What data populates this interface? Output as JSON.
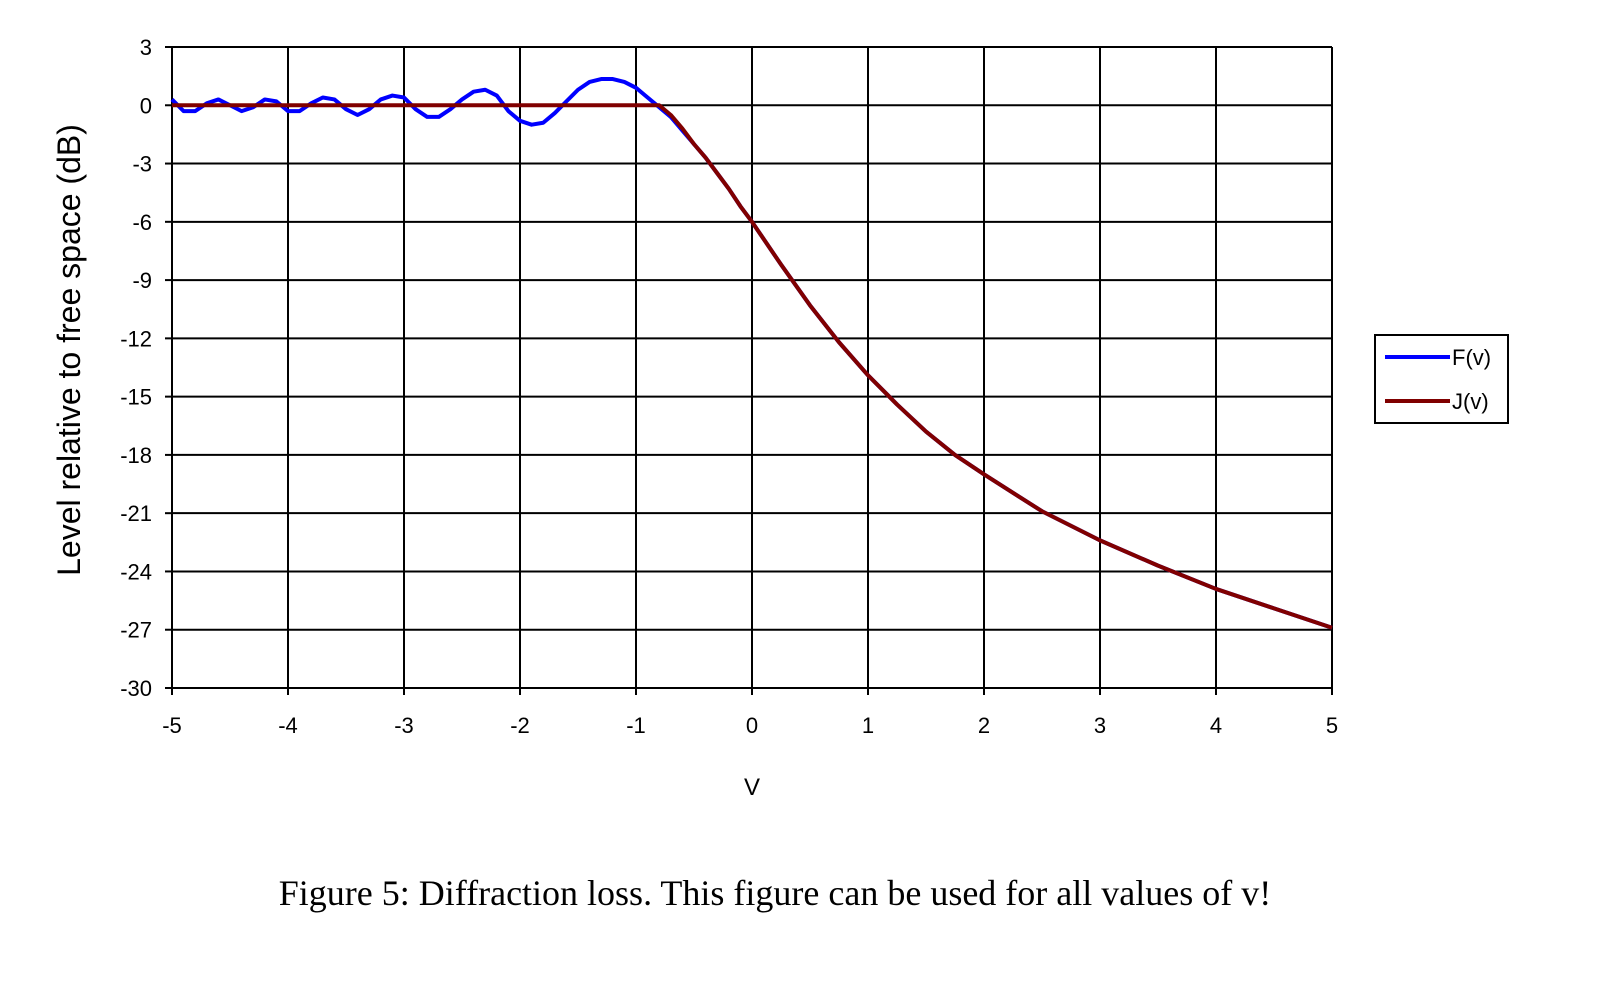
{
  "chart_data": {
    "type": "line",
    "x_label": "V",
    "y_label": "Level relative to free space (dB)",
    "caption": "Figure 5: Diffraction loss. This figure can be used for all values of v!",
    "x": [
      -5,
      -4.9,
      -4.8,
      -4.7,
      -4.6,
      -4.5,
      -4.4,
      -4.3,
      -4.2,
      -4.1,
      -4,
      -3.9,
      -3.8,
      -3.7,
      -3.6,
      -3.5,
      -3.4,
      -3.3,
      -3.2,
      -3.1,
      -3,
      -2.9,
      -2.8,
      -2.7,
      -2.6,
      -2.5,
      -2.4,
      -2.3,
      -2.2,
      -2.1,
      -2,
      -1.9,
      -1.8,
      -1.7,
      -1.6,
      -1.5,
      -1.4,
      -1.3,
      -1.2,
      -1.1,
      -1,
      -0.9,
      -0.8,
      -0.7,
      -0.6,
      -0.5,
      -0.4,
      -0.3,
      -0.2,
      -0.1,
      0,
      0.25,
      0.5,
      0.75,
      1,
      1.25,
      1.5,
      1.75,
      2,
      2.5,
      3,
      3.5,
      4,
      4.5,
      5
    ],
    "series": [
      {
        "name": "F(v)",
        "color": "#0000ff",
        "values": [
          0.3,
          -0.3,
          -0.3,
          0.1,
          0.3,
          0,
          -0.3,
          -0.1,
          0.3,
          0.2,
          -0.3,
          -0.3,
          0.1,
          0.4,
          0.3,
          -0.2,
          -0.5,
          -0.2,
          0.3,
          0.5,
          0.4,
          -0.2,
          -0.6,
          -0.6,
          -0.2,
          0.3,
          0.7,
          0.8,
          0.5,
          -0.3,
          -0.8,
          -1,
          -0.9,
          -0.4,
          0.2,
          0.8,
          1.2,
          1.35,
          1.35,
          1.2,
          0.9,
          0.4,
          -0.1,
          -0.6,
          -1.3,
          -2,
          -2.7,
          -3.5,
          -4.3,
          -5.2,
          -6,
          -8.2,
          -10.3,
          -12.2,
          -13.9,
          -15.4,
          -16.8,
          -18,
          -19,
          -20.9,
          -22.4,
          -23.7,
          -24.9,
          -25.9,
          -26.9
        ]
      },
      {
        "name": "J(v)",
        "color": "#800000",
        "values": [
          0,
          0,
          0,
          0,
          0,
          0,
          0,
          0,
          0,
          0,
          0,
          0,
          0,
          0,
          0,
          0,
          0,
          0,
          0,
          0,
          0,
          0,
          0,
          0,
          0,
          0,
          0,
          0,
          0,
          0,
          0,
          0,
          0,
          0,
          0,
          0,
          0,
          0,
          0,
          0,
          0,
          0,
          0,
          -0.5,
          -1.2,
          -2,
          -2.7,
          -3.5,
          -4.3,
          -5.2,
          -6,
          -8.2,
          -10.3,
          -12.2,
          -13.9,
          -15.4,
          -16.8,
          -18,
          -19,
          -20.9,
          -22.4,
          -23.7,
          -24.9,
          -25.9,
          -26.9
        ]
      }
    ],
    "xlim": [
      -5,
      5
    ],
    "xticks": [
      -5,
      -4,
      -3,
      -2,
      -1,
      0,
      1,
      2,
      3,
      4,
      5
    ],
    "ylim": [
      -30,
      3
    ],
    "yticks": [
      3,
      0,
      -3,
      -6,
      -9,
      -12,
      -15,
      -18,
      -21,
      -24,
      -27,
      -30
    ],
    "grid": true,
    "legend": "right"
  }
}
